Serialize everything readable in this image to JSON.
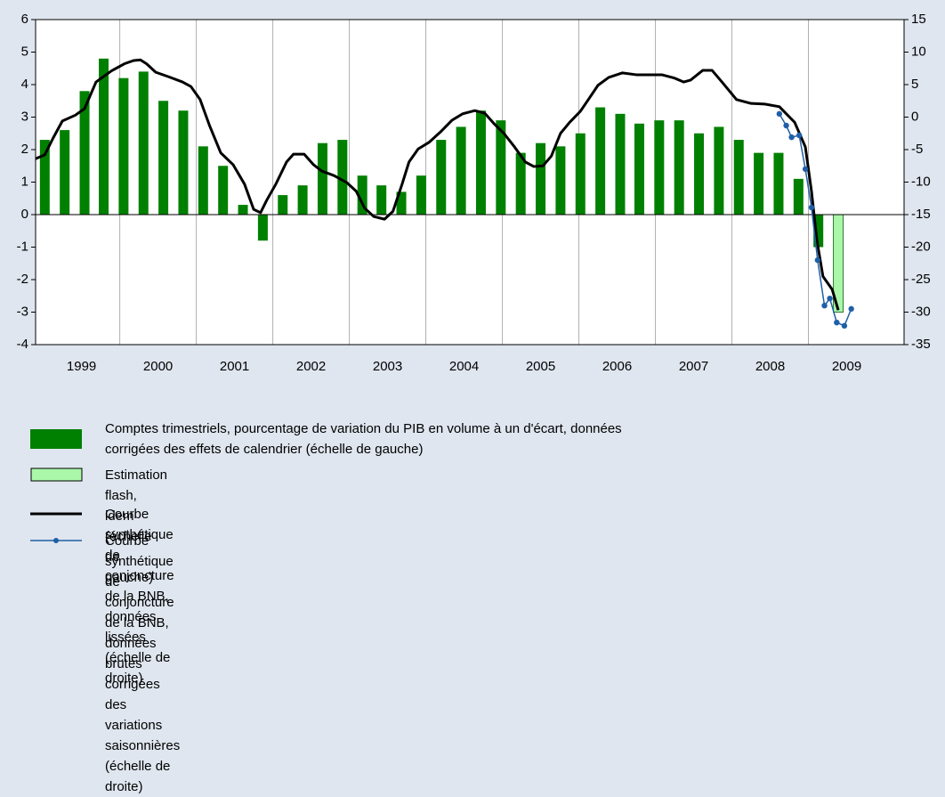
{
  "chart_data": {
    "type": "bar-line",
    "xlim": [
      1998.9,
      2010.25
    ],
    "xgrid": [
      2000,
      2001,
      2002,
      2003,
      2004,
      2005,
      2006,
      2007,
      2008,
      2009
    ],
    "xticks": [
      {
        "value": 1999.5,
        "label": "1999"
      },
      {
        "value": 2000.5,
        "label": "2000"
      },
      {
        "value": 2001.5,
        "label": "2001"
      },
      {
        "value": 2002.5,
        "label": "2002"
      },
      {
        "value": 2003.5,
        "label": "2003"
      },
      {
        "value": 2004.5,
        "label": "2004"
      },
      {
        "value": 2005.5,
        "label": "2005"
      },
      {
        "value": 2006.5,
        "label": "2006"
      },
      {
        "value": 2007.5,
        "label": "2007"
      },
      {
        "value": 2008.5,
        "label": "2008"
      },
      {
        "value": 2009.5,
        "label": "2009"
      }
    ],
    "ylim": [
      -4,
      6
    ],
    "yticks": [
      -4,
      -3,
      -2,
      -1,
      0,
      1,
      2,
      3,
      4,
      5,
      6
    ],
    "y2lim": [
      -35,
      15
    ],
    "y2ticks": [
      -35,
      -30,
      -25,
      -20,
      -15,
      -10,
      -5,
      0,
      5,
      10,
      15
    ],
    "grid": true,
    "series": [
      {
        "name": "Comptes trimestriels, pourcentage de variation du PIB en volume à un d'écart, données corrigées des effets de calendrier (échelle de gauche)",
        "kind": "bar",
        "color": "#008000",
        "x": [
          1999.02,
          1999.28,
          1999.54,
          1999.79,
          2000.05,
          2000.31,
          2000.57,
          2000.83,
          2001.09,
          2001.35,
          2001.61,
          2001.87,
          2002.13,
          2002.39,
          2002.65,
          2002.91,
          2003.17,
          2003.42,
          2003.68,
          2003.94,
          2004.2,
          2004.46,
          2004.72,
          2004.98,
          2005.24,
          2005.5,
          2005.76,
          2006.02,
          2006.28,
          2006.54,
          2006.79,
          2007.05,
          2007.31,
          2007.57,
          2007.83,
          2008.09,
          2008.35,
          2008.61,
          2008.87,
          2009.13
        ],
        "values": [
          2.3,
          2.6,
          3.8,
          4.8,
          4.2,
          4.4,
          3.5,
          3.2,
          2.1,
          1.5,
          0.3,
          -0.8,
          0.6,
          0.9,
          2.2,
          2.3,
          1.2,
          0.9,
          0.7,
          1.2,
          2.3,
          2.7,
          3.2,
          2.9,
          1.9,
          2.2,
          2.1,
          2.5,
          3.3,
          3.1,
          2.8,
          2.9,
          2.9,
          2.5,
          2.7,
          2.3,
          1.9,
          1.9,
          1.1,
          -1.0
        ]
      },
      {
        "name": "Estimation flash, idem (échelle de gauche)",
        "kind": "bar",
        "color": "#aaf7aa",
        "x": [
          2009.39
        ],
        "values": [
          -3.0
        ]
      },
      {
        "name": "Courbe synthétique de conjoncture de la BNB, données lissées (échelle de droite)",
        "kind": "line",
        "axis": "y2",
        "color": "#000000",
        "x": [
          1998.9,
          1999.02,
          1999.13,
          1999.25,
          1999.42,
          1999.54,
          1999.69,
          1999.89,
          2000.06,
          2000.18,
          2000.27,
          2000.35,
          2000.47,
          2000.64,
          2000.82,
          2000.93,
          2001.05,
          2001.17,
          2001.32,
          2001.48,
          2001.63,
          2001.75,
          2001.84,
          2001.92,
          2002.04,
          2002.18,
          2002.27,
          2002.41,
          2002.53,
          2002.64,
          2002.8,
          2002.97,
          2003.09,
          2003.2,
          2003.32,
          2003.46,
          2003.57,
          2003.69,
          2003.78,
          2003.9,
          2004.04,
          2004.19,
          2004.34,
          2004.48,
          2004.64,
          2004.77,
          2004.89,
          2005.02,
          2005.16,
          2005.3,
          2005.41,
          2005.53,
          2005.64,
          2005.76,
          2005.88,
          2006.02,
          2006.13,
          2006.25,
          2006.39,
          2006.57,
          2006.76,
          2006.92,
          2007.09,
          2007.25,
          2007.37,
          2007.46,
          2007.62,
          2007.74,
          2007.87,
          2008.06,
          2008.25,
          2008.43,
          2008.62,
          2008.82,
          2008.96,
          2009.04,
          2009.11,
          2009.19,
          2009.31,
          2009.39
        ],
        "values": [
          -6.4,
          -5.8,
          -3.2,
          -0.6,
          0.3,
          1.3,
          5.4,
          7.1,
          8.2,
          8.7,
          8.8,
          8.2,
          6.9,
          6.2,
          5.4,
          4.7,
          2.7,
          -1.2,
          -5.5,
          -7.3,
          -10.3,
          -14.2,
          -14.7,
          -12.8,
          -10.3,
          -6.9,
          -5.7,
          -5.7,
          -7.3,
          -8.3,
          -9.0,
          -10.1,
          -11.4,
          -14.0,
          -15.3,
          -15.7,
          -14.5,
          -10.3,
          -6.9,
          -4.9,
          -3.9,
          -2.3,
          -0.5,
          0.5,
          1.0,
          0.6,
          -1.0,
          -2.5,
          -4.6,
          -6.9,
          -7.6,
          -7.5,
          -6.0,
          -2.5,
          -0.8,
          0.9,
          2.8,
          4.9,
          6.1,
          6.8,
          6.5,
          6.5,
          6.5,
          6.0,
          5.4,
          5.7,
          7.2,
          7.2,
          5.4,
          2.7,
          2.1,
          2.0,
          1.6,
          -0.8,
          -4.6,
          -11.4,
          -18.9,
          -24.5,
          -26.5,
          -29.7
        ]
      },
      {
        "name": "Courbe synthétique de conjoncture de la BNB, données brutes corrigées des variations saisonnières (échelle de droite)",
        "kind": "line-markers",
        "axis": "y2",
        "color": "#1f5fa8",
        "x": [
          2008.62,
          2008.71,
          2008.78,
          2008.88,
          2008.96,
          2009.04,
          2009.12,
          2009.21,
          2009.28,
          2009.37,
          2009.47,
          2009.56
        ],
        "values": [
          0.5,
          -1.3,
          -3.1,
          -2.8,
          -8.0,
          -13.9,
          -22.0,
          -29.0,
          -27.9,
          -31.6,
          -32.1,
          -29.5
        ]
      }
    ]
  }
}
